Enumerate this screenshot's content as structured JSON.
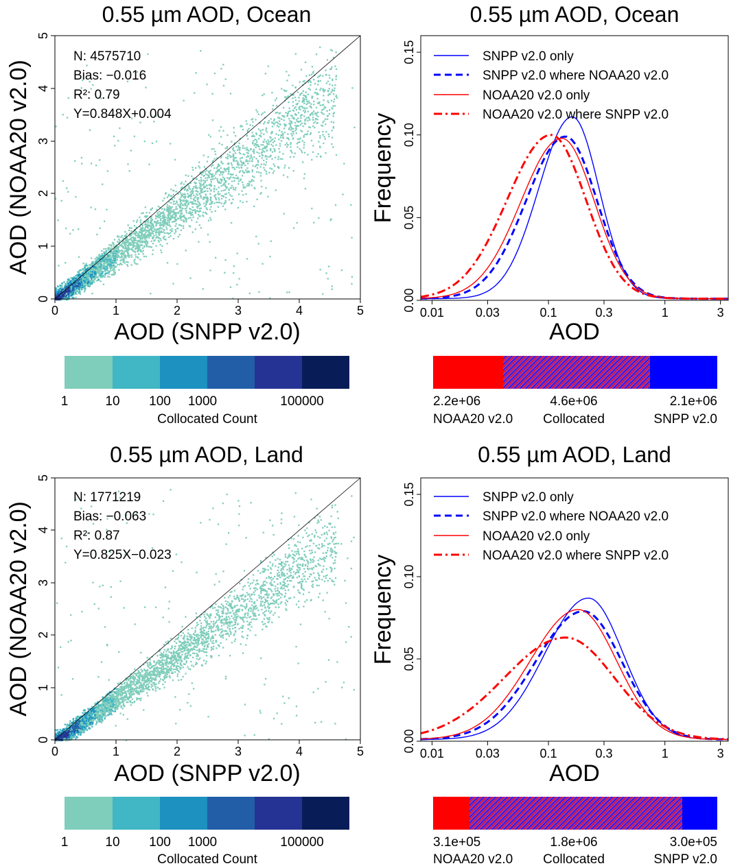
{
  "panels": [
    {
      "scatter": {
        "title": "0.55 µm AOD, Ocean",
        "xlabel": "AOD (SNPP v2.0)",
        "ylabel": "AOD (NOAA20 v2.0)",
        "stats": [
          "N: 4575710",
          "Bias: −0.016",
          "R²: 0.79",
          "Y=0.848X+0.004"
        ]
      },
      "colorbar": {
        "colors": [
          "#7fcdbb",
          "#41b6c4",
          "#1d91c0",
          "#225ea8",
          "#253494",
          "#081d58"
        ],
        "ticks": [
          "1",
          "10",
          "100",
          "1000",
          "100000"
        ],
        "label": "Collocated Count"
      },
      "freq": {
        "title": "0.55 µm AOD, Ocean",
        "xlabel": "AOD",
        "ylabel": "Frequency",
        "legend": [
          "SNPP v2.0 only",
          "SNPP v2.0 where NOAA20 v2.0",
          "NOAA20 v2.0 only",
          "NOAA20 v2.0 where SNPP v2.0"
        ]
      },
      "countbar": {
        "values": [
          "2.2e+06",
          "4.6e+06",
          "2.1e+06"
        ],
        "labels": [
          "NOAA20 v2.0",
          "Collocated",
          "SNPP v2.0"
        ]
      }
    },
    {
      "scatter": {
        "title": "0.55 µm AOD, Land",
        "xlabel": "AOD (SNPP v2.0)",
        "ylabel": "AOD (NOAA20 v2.0)",
        "stats": [
          "N: 1771219",
          "Bias: −0.063",
          "R²: 0.87",
          "Y=0.825X−0.023"
        ]
      },
      "colorbar": {
        "colors": [
          "#7fcdbb",
          "#41b6c4",
          "#1d91c0",
          "#225ea8",
          "#253494",
          "#081d58"
        ],
        "ticks": [
          "1",
          "10",
          "100",
          "1000",
          "100000"
        ],
        "label": "Collocated Count"
      },
      "freq": {
        "title": "0.55 µm AOD, Land",
        "xlabel": "AOD",
        "ylabel": "Frequency",
        "legend": [
          "SNPP v2.0 only",
          "SNPP v2.0 where NOAA20 v2.0",
          "NOAA20 v2.0 only",
          "NOAA20 v2.0 where SNPP v2.0"
        ]
      },
      "countbar": {
        "values": [
          "3.1e+05",
          "1.8e+06",
          "3.0e+05"
        ],
        "labels": [
          "NOAA20 v2.0",
          "Collocated",
          "SNPP v2.0"
        ]
      }
    }
  ],
  "colors": {
    "snpp": "#0000ff",
    "noaa20": "#ff0000",
    "hatch_bg": "#8a3ab9",
    "scatter_base": "#7fcdbb"
  },
  "chart_data": [
    {
      "type": "scatter",
      "title": "0.55 µm AOD, Ocean",
      "xlabel": "AOD (SNPP v2.0)",
      "ylabel": "AOD (NOAA20 v2.0)",
      "xlim": [
        0,
        5
      ],
      "ylim": [
        0,
        5
      ],
      "xticks": [
        0,
        1,
        2,
        3,
        4,
        5
      ],
      "yticks": [
        0,
        1,
        2,
        3,
        4,
        5
      ],
      "n": 4575710,
      "bias": -0.016,
      "r2": 0.79,
      "slope": 0.848,
      "intercept": 0.004,
      "spread": 0.35
    },
    {
      "type": "line",
      "title": "0.55 µm AOD, Ocean",
      "xlabel": "AOD",
      "ylabel": "Frequency",
      "xscale": "log",
      "xlim": [
        0.008,
        3.5
      ],
      "ylim": [
        0,
        0.16
      ],
      "xticks": [
        0.01,
        0.03,
        0.1,
        0.3,
        1,
        3
      ],
      "xtick_labels": [
        "0.01",
        "0.03",
        "0.1",
        "0.3",
        "1",
        "3"
      ],
      "yticks": [
        0,
        0.05,
        0.1,
        0.15
      ],
      "ytick_labels": [
        "0.00",
        "0.05",
        "0.10",
        "0.15"
      ],
      "series": [
        {
          "name": "SNPP v2.0 only",
          "peak_x": 0.16,
          "peak_y": 0.11,
          "width": 0.23
        },
        {
          "name": "SNPP v2.0 where NOAA20 v2.0",
          "peak_x": 0.14,
          "peak_y": 0.098,
          "width": 0.27
        },
        {
          "name": "NOAA20 v2.0 only",
          "peak_x": 0.13,
          "peak_y": 0.097,
          "width": 0.28
        },
        {
          "name": "NOAA20 v2.0 where SNPP v2.0",
          "peak_x": 0.105,
          "peak_y": 0.099,
          "width": 0.3
        }
      ]
    },
    {
      "type": "scatter",
      "title": "0.55 µm AOD, Land",
      "xlabel": "AOD (SNPP v2.0)",
      "ylabel": "AOD (NOAA20 v2.0)",
      "xlim": [
        0,
        5
      ],
      "ylim": [
        0,
        5
      ],
      "xticks": [
        0,
        1,
        2,
        3,
        4,
        5
      ],
      "yticks": [
        0,
        1,
        2,
        3,
        4,
        5
      ],
      "n": 1771219,
      "bias": -0.063,
      "r2": 0.87,
      "slope": 0.825,
      "intercept": -0.023,
      "spread": 0.28
    },
    {
      "type": "line",
      "title": "0.55 µm AOD, Land",
      "xlabel": "AOD",
      "ylabel": "Frequency",
      "xscale": "log",
      "xlim": [
        0.008,
        3.5
      ],
      "ylim": [
        0,
        0.16
      ],
      "xticks": [
        0.01,
        0.03,
        0.1,
        0.3,
        1,
        3
      ],
      "xtick_labels": [
        "0.01",
        "0.03",
        "0.1",
        "0.3",
        "1",
        "3"
      ],
      "yticks": [
        0,
        0.05,
        0.1,
        0.15
      ],
      "ytick_labels": [
        "0.00",
        "0.05",
        "0.10",
        "0.15"
      ],
      "series": [
        {
          "name": "SNPP v2.0 only",
          "peak_x": 0.22,
          "peak_y": 0.086,
          "width": 0.3
        },
        {
          "name": "SNPP v2.0 where NOAA20 v2.0",
          "peak_x": 0.2,
          "peak_y": 0.078,
          "width": 0.33
        },
        {
          "name": "NOAA20 v2.0 only",
          "peak_x": 0.18,
          "peak_y": 0.079,
          "width": 0.33
        },
        {
          "name": "NOAA20 v2.0 where SNPP v2.0",
          "peak_x": 0.14,
          "peak_y": 0.062,
          "width": 0.42
        }
      ]
    }
  ]
}
